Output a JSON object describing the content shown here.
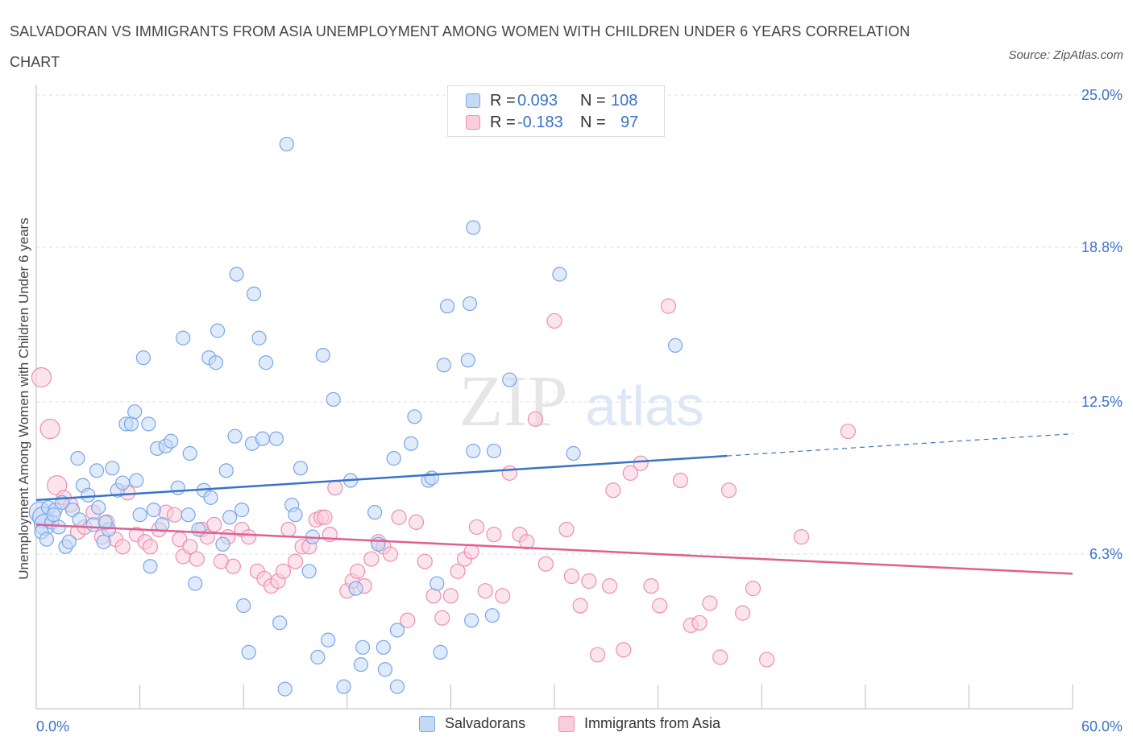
{
  "title": "SALVADORAN VS IMMIGRANTS FROM ASIA UNEMPLOYMENT AMONG WOMEN WITH CHILDREN UNDER 6 YEARS CORRELATION CHART",
  "source": "Source: ZipAtlas.com",
  "watermark": {
    "zip": "ZIP",
    "atlas": "atlas"
  },
  "legend_top": [
    {
      "r_label": "R =",
      "r_value": "0.093",
      "n_label": "N =",
      "n_value": "108",
      "color": "#7aa6e8",
      "fill": "#c4d9f6"
    },
    {
      "r_label": "R =",
      "r_value": "-0.183",
      "n_label": "N =",
      "n_value": "97",
      "color": "#ec8fb0",
      "fill": "#f9cddd"
    }
  ],
  "legend_bottom": [
    {
      "label": "Salvadorans",
      "color": "#7aa6e8",
      "fill": "#c4d9f6"
    },
    {
      "label": "Immigrants from Asia",
      "color": "#ec8fb0",
      "fill": "#f9cddd"
    }
  ],
  "chart_data": {
    "type": "scatter",
    "title": "SALVADORAN VS IMMIGRANTS FROM ASIA UNEMPLOYMENT AMONG WOMEN WITH CHILDREN UNDER 6 YEARS CORRELATION CHART",
    "xlabel": "",
    "ylabel": "Unemployment Among Women with Children Under 6 years",
    "xlim": [
      0,
      60
    ],
    "ylim": [
      0,
      25
    ],
    "x_tick_labels": [
      "0.0%",
      "60.0%"
    ],
    "y_tick_labels": [
      "6.3%",
      "12.5%",
      "18.8%",
      "25.0%"
    ],
    "y_ticks": [
      6.3,
      12.5,
      18.8,
      25.0
    ],
    "grid": "horizontal dashed",
    "legend_position": "top-center and bottom",
    "series": [
      {
        "name": "Salvadorans",
        "color": "#3a73c9",
        "trend": {
          "x_start": 0,
          "y_start": 8.5,
          "x_solid_end": 40,
          "y_solid_end": 10.3,
          "x_end": 60,
          "y_end": 11.2
        },
        "points": [
          [
            0.2,
            8.0
          ],
          [
            0.4,
            7.8
          ],
          [
            0.5,
            7.5
          ],
          [
            0.7,
            8.2
          ],
          [
            0.9,
            7.6
          ],
          [
            1.1,
            8.1
          ],
          [
            1.3,
            7.4
          ],
          [
            1.5,
            8.4
          ],
          [
            1.7,
            6.6
          ],
          [
            1.9,
            6.8
          ],
          [
            2.1,
            8.1
          ],
          [
            2.4,
            10.2
          ],
          [
            2.7,
            9.1
          ],
          [
            3.0,
            8.7
          ],
          [
            3.3,
            7.5
          ],
          [
            3.6,
            8.2
          ],
          [
            3.9,
            6.8
          ],
          [
            4.2,
            7.3
          ],
          [
            4.4,
            9.8
          ],
          [
            4.7,
            8.9
          ],
          [
            5.0,
            9.2
          ],
          [
            5.2,
            11.6
          ],
          [
            5.5,
            11.6
          ],
          [
            5.7,
            12.1
          ],
          [
            6.0,
            7.9
          ],
          [
            6.2,
            14.3
          ],
          [
            6.5,
            11.6
          ],
          [
            6.6,
            5.8
          ],
          [
            6.8,
            8.1
          ],
          [
            7.0,
            10.6
          ],
          [
            7.3,
            7.5
          ],
          [
            7.5,
            10.7
          ],
          [
            7.8,
            10.9
          ],
          [
            8.2,
            9.0
          ],
          [
            8.5,
            15.1
          ],
          [
            8.8,
            7.9
          ],
          [
            8.9,
            10.4
          ],
          [
            9.2,
            5.1
          ],
          [
            9.4,
            7.3
          ],
          [
            9.7,
            8.9
          ],
          [
            10.0,
            14.3
          ],
          [
            10.1,
            8.6
          ],
          [
            10.4,
            14.1
          ],
          [
            10.5,
            15.4
          ],
          [
            10.8,
            6.7
          ],
          [
            11.0,
            9.7
          ],
          [
            11.2,
            7.8
          ],
          [
            11.5,
            11.1
          ],
          [
            11.6,
            17.7
          ],
          [
            11.9,
            8.1
          ],
          [
            12.0,
            4.2
          ],
          [
            12.3,
            2.3
          ],
          [
            12.5,
            10.8
          ],
          [
            12.6,
            16.9
          ],
          [
            12.9,
            15.1
          ],
          [
            13.1,
            11.0
          ],
          [
            13.3,
            14.1
          ],
          [
            13.9,
            11.0
          ],
          [
            14.1,
            3.5
          ],
          [
            14.4,
            0.8
          ],
          [
            14.5,
            23.0
          ],
          [
            14.8,
            8.3
          ],
          [
            15.0,
            7.9
          ],
          [
            15.3,
            9.8
          ],
          [
            15.8,
            5.6
          ],
          [
            16.0,
            7.0
          ],
          [
            16.3,
            2.1
          ],
          [
            16.6,
            14.4
          ],
          [
            16.9,
            2.8
          ],
          [
            17.2,
            12.6
          ],
          [
            17.8,
            0.9
          ],
          [
            18.2,
            9.3
          ],
          [
            18.5,
            4.9
          ],
          [
            18.8,
            1.8
          ],
          [
            18.9,
            2.5
          ],
          [
            19.6,
            8.0
          ],
          [
            19.8,
            6.7
          ],
          [
            20.1,
            2.5
          ],
          [
            20.2,
            1.6
          ],
          [
            20.7,
            10.2
          ],
          [
            20.9,
            3.2
          ],
          [
            20.9,
            0.9
          ],
          [
            21.7,
            10.8
          ],
          [
            21.9,
            11.9
          ],
          [
            22.7,
            9.3
          ],
          [
            22.9,
            9.4
          ],
          [
            23.2,
            5.1
          ],
          [
            23.4,
            2.3
          ],
          [
            23.6,
            14.0
          ],
          [
            23.8,
            16.4
          ],
          [
            25.0,
            14.2
          ],
          [
            25.1,
            16.5
          ],
          [
            25.2,
            3.6
          ],
          [
            25.3,
            19.6
          ],
          [
            25.3,
            10.5
          ],
          [
            26.4,
            3.8
          ],
          [
            26.5,
            10.5
          ],
          [
            27.4,
            13.4
          ],
          [
            30.3,
            17.7
          ],
          [
            31.1,
            10.4
          ],
          [
            37.0,
            14.8
          ],
          [
            0.3,
            7.2
          ],
          [
            0.6,
            6.9
          ],
          [
            1.0,
            7.9
          ],
          [
            2.5,
            7.7
          ],
          [
            3.5,
            9.7
          ],
          [
            4.0,
            7.6
          ],
          [
            5.8,
            9.3
          ]
        ]
      },
      {
        "name": "Immigrants from Asia",
        "color": "#e05f8e",
        "trend": {
          "x_start": 0,
          "y_start": 7.5,
          "x_end": 60,
          "y_end": 5.5
        },
        "points": [
          [
            0.3,
            13.5
          ],
          [
            0.8,
            11.4
          ],
          [
            1.2,
            9.1
          ],
          [
            1.6,
            8.6
          ],
          [
            2.0,
            8.3
          ],
          [
            2.4,
            7.2
          ],
          [
            2.8,
            7.4
          ],
          [
            3.3,
            8.0
          ],
          [
            3.8,
            7.0
          ],
          [
            4.1,
            7.6
          ],
          [
            4.6,
            6.9
          ],
          [
            5.0,
            6.6
          ],
          [
            5.3,
            8.8
          ],
          [
            5.8,
            7.1
          ],
          [
            6.3,
            6.8
          ],
          [
            6.6,
            6.6
          ],
          [
            7.1,
            7.3
          ],
          [
            7.5,
            8.0
          ],
          [
            8.0,
            7.9
          ],
          [
            8.3,
            6.9
          ],
          [
            8.5,
            6.2
          ],
          [
            8.9,
            6.6
          ],
          [
            9.3,
            6.1
          ],
          [
            9.6,
            7.3
          ],
          [
            9.9,
            7.0
          ],
          [
            10.3,
            7.5
          ],
          [
            10.7,
            6.0
          ],
          [
            11.1,
            7.0
          ],
          [
            11.4,
            5.8
          ],
          [
            11.9,
            7.3
          ],
          [
            12.3,
            7.0
          ],
          [
            12.8,
            5.6
          ],
          [
            13.2,
            5.3
          ],
          [
            13.6,
            5.0
          ],
          [
            14.0,
            5.2
          ],
          [
            14.3,
            5.6
          ],
          [
            14.6,
            7.3
          ],
          [
            15.0,
            6.0
          ],
          [
            15.4,
            6.6
          ],
          [
            15.8,
            6.6
          ],
          [
            16.2,
            7.7
          ],
          [
            16.5,
            7.8
          ],
          [
            16.7,
            7.8
          ],
          [
            17.0,
            7.1
          ],
          [
            17.3,
            9.0
          ],
          [
            18.0,
            4.8
          ],
          [
            18.3,
            5.2
          ],
          [
            18.6,
            5.6
          ],
          [
            19.0,
            5.0
          ],
          [
            19.4,
            6.1
          ],
          [
            19.8,
            6.8
          ],
          [
            20.1,
            6.6
          ],
          [
            20.5,
            6.3
          ],
          [
            21.0,
            7.8
          ],
          [
            21.5,
            3.6
          ],
          [
            22.0,
            7.6
          ],
          [
            22.5,
            6.0
          ],
          [
            23.0,
            4.6
          ],
          [
            23.5,
            3.7
          ],
          [
            24.0,
            4.6
          ],
          [
            24.4,
            5.6
          ],
          [
            24.8,
            6.1
          ],
          [
            25.2,
            6.4
          ],
          [
            25.5,
            7.4
          ],
          [
            26.0,
            4.8
          ],
          [
            26.5,
            7.1
          ],
          [
            27.0,
            4.6
          ],
          [
            27.4,
            9.6
          ],
          [
            28.0,
            7.1
          ],
          [
            28.4,
            6.8
          ],
          [
            28.9,
            11.8
          ],
          [
            29.5,
            5.9
          ],
          [
            30.0,
            15.8
          ],
          [
            30.7,
            7.3
          ],
          [
            31.0,
            5.4
          ],
          [
            31.5,
            4.2
          ],
          [
            32.0,
            5.2
          ],
          [
            32.5,
            2.2
          ],
          [
            33.2,
            5.0
          ],
          [
            33.4,
            8.9
          ],
          [
            34.0,
            2.4
          ],
          [
            34.4,
            9.6
          ],
          [
            35.0,
            10.0
          ],
          [
            35.6,
            5.0
          ],
          [
            36.1,
            4.2
          ],
          [
            36.6,
            16.4
          ],
          [
            37.3,
            9.3
          ],
          [
            37.9,
            3.4
          ],
          [
            38.4,
            3.5
          ],
          [
            39.0,
            4.3
          ],
          [
            39.6,
            2.1
          ],
          [
            40.1,
            8.9
          ],
          [
            40.9,
            3.9
          ],
          [
            41.5,
            4.9
          ],
          [
            42.3,
            2.0
          ],
          [
            44.3,
            7.0
          ],
          [
            47.0,
            11.3
          ]
        ]
      }
    ]
  }
}
